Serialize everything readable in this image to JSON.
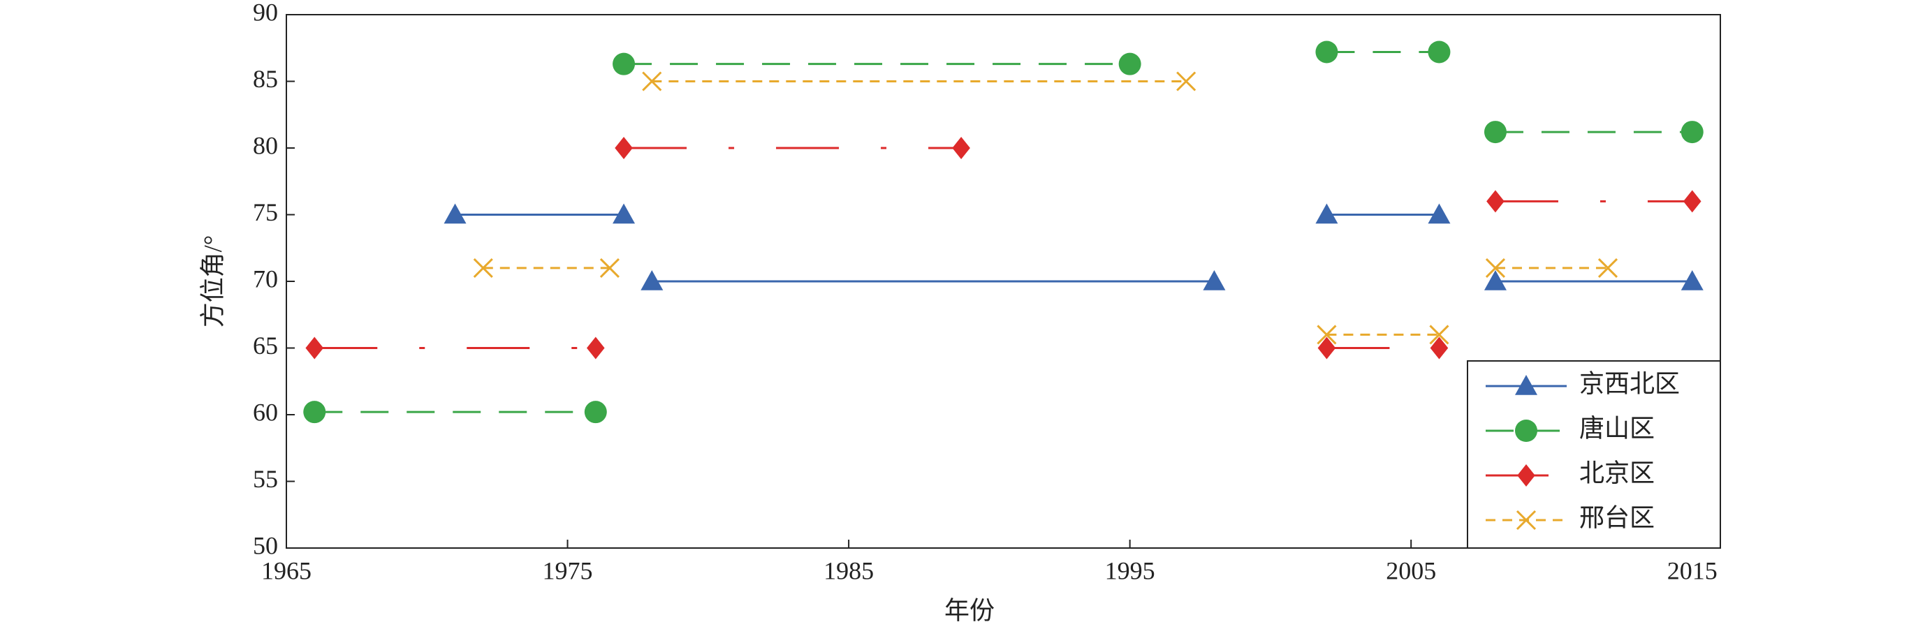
{
  "chart_data": {
    "type": "line",
    "x_label": "年份",
    "y_label": "方位角/°",
    "xlim": [
      1965,
      2016
    ],
    "xticks": [
      1965,
      1975,
      1985,
      1995,
      2005,
      2015
    ],
    "ylim": [
      50,
      90
    ],
    "yticks": [
      50,
      55,
      60,
      65,
      70,
      75,
      80,
      85,
      90
    ],
    "legend": "lower right",
    "series": [
      {
        "name": "京西北区",
        "color": "#3a66ad",
        "marker": "triangle",
        "dash": "solid",
        "x": [
          1971,
          1977,
          null,
          1978,
          1998,
          null,
          2002,
          2006,
          null,
          2008,
          2015
        ],
        "values": [
          75,
          75,
          null,
          70,
          70,
          null,
          75,
          75,
          null,
          70,
          70
        ]
      },
      {
        "name": "唐山区",
        "color": "#3aa648",
        "marker": "circle",
        "dash": "dashed",
        "x": [
          1966,
          1976,
          null,
          1977,
          1995,
          null,
          2002,
          2006,
          null,
          2008,
          2015
        ],
        "values": [
          60.2,
          60.2,
          null,
          86.3,
          86.3,
          null,
          87.2,
          87.2,
          null,
          81.2,
          81.2
        ]
      },
      {
        "name": "北京区",
        "color": "#dd2a2a",
        "marker": "diamond",
        "dash": "dashdot",
        "x": [
          1966,
          1976,
          null,
          1977,
          1989,
          null,
          2002,
          2006,
          null,
          2008,
          2015
        ],
        "values": [
          65,
          65,
          null,
          80,
          80,
          null,
          65,
          65,
          null,
          76,
          76
        ]
      },
      {
        "name": "邢台区",
        "color": "#e8a92c",
        "marker": "x",
        "dash": "dotted",
        "x": [
          1972,
          1976.5,
          null,
          1978,
          1997,
          null,
          2002,
          2006,
          null,
          2008,
          2012
        ],
        "values": [
          71,
          71,
          null,
          85,
          85,
          null,
          66,
          66,
          null,
          71,
          71
        ]
      }
    ]
  }
}
